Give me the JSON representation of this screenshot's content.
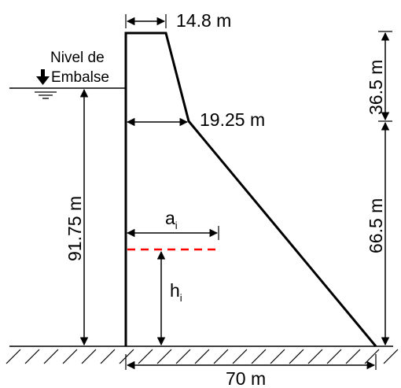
{
  "water_level": {
    "line1": "Nivel de",
    "line2": "Embalse"
  },
  "dimensions": {
    "crest_width": "14.8 m",
    "width_at_break": "19.25 m",
    "upper_height": "36.5 m",
    "lower_height": "66.5 m",
    "water_depth": "91.75 m",
    "base_width": "70 m"
  },
  "variables": {
    "a_main": "a",
    "a_sub": "i",
    "h_main": "h",
    "h_sub": "i"
  },
  "colors": {
    "line": "#000000",
    "section_line": "#ff0000"
  }
}
